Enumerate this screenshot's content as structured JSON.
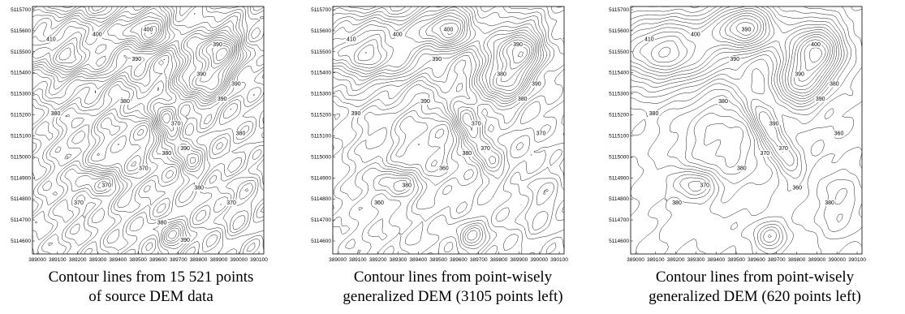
{
  "panels": [
    {
      "caption_line1": "Contour lines from 15 521 points",
      "caption_line2": "of source DEM data",
      "contour_labels": [
        "410",
        "400",
        "400",
        "390",
        "390",
        "390",
        "390",
        "380",
        "390",
        "380",
        "370",
        "380",
        "390",
        "380",
        "370",
        "370",
        "370",
        "380",
        "370",
        "380",
        "390"
      ]
    },
    {
      "caption_line1": "Contour lines from point-wisely",
      "caption_line2": "generalized DEM (3105 points left)",
      "contour_labels": [
        "410",
        "400",
        "400",
        "390",
        "390",
        "380",
        "390",
        "390",
        "380",
        "390",
        "370",
        "380",
        "370",
        "370",
        "360",
        "380",
        "360"
      ]
    },
    {
      "caption_line1": "Contour lines from point-wisely",
      "caption_line2": "generalized DEM (620 points left)",
      "contour_labels": [
        "410",
        "400",
        "390",
        "390",
        "400",
        "390",
        "380",
        "380",
        "390",
        "380",
        "390",
        "370",
        "370",
        "360",
        "380",
        "370",
        "380",
        "360",
        "380"
      ]
    }
  ],
  "y_ticks": [
    "5115700",
    "5115600",
    "5115500",
    "5115400",
    "5115300",
    "5115200",
    "5115100",
    "5115000",
    "5114900",
    "5114800",
    "5114700",
    "5114600"
  ],
  "x_ticks": [
    "389000",
    "389100",
    "389200",
    "389300",
    "389400",
    "389500",
    "389600",
    "389700",
    "389800",
    "389900",
    "390000",
    "390100"
  ]
}
